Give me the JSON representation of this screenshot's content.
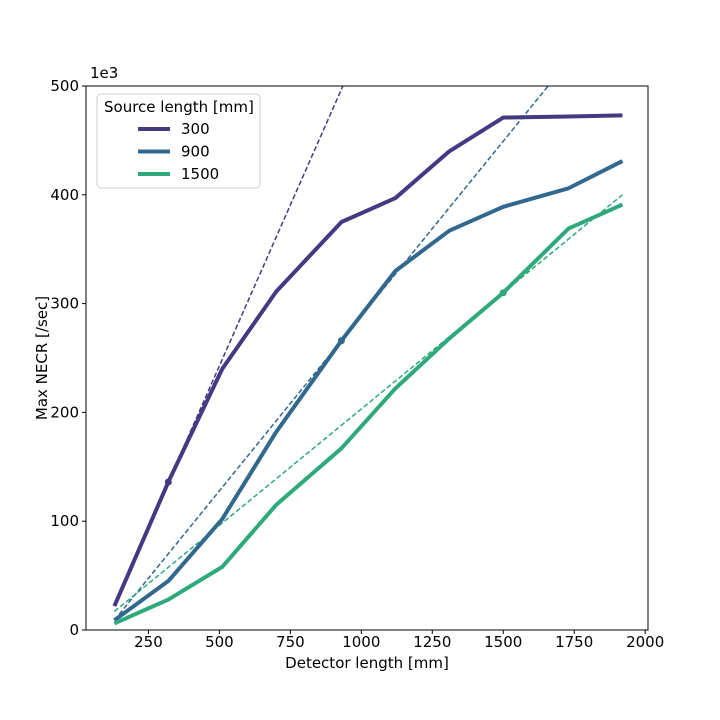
{
  "chart_data": {
    "type": "line",
    "xlabel": "Detector length [mm]",
    "ylabel": "Max NECR [/sec]",
    "y_offset_label": "1e3",
    "xlim": [
      30,
      2010
    ],
    "ylim": [
      0,
      500
    ],
    "xticks": [
      250,
      500,
      750,
      1000,
      1250,
      1500,
      1750,
      2000
    ],
    "yticks": [
      0,
      100,
      200,
      300,
      400,
      500
    ],
    "legend_title": "Source length [mm]",
    "legend_loc": "upper left",
    "x": [
      130,
      320,
      510,
      700,
      930,
      1120,
      1310,
      1500,
      1730,
      1920
    ],
    "series": [
      {
        "name": "300",
        "color": "#443983",
        "values": [
          22,
          136,
          240,
          311,
          375,
          397,
          440,
          471,
          472,
          473
        ]
      },
      {
        "name": "900",
        "color": "#31688e",
        "values": [
          9,
          45,
          102,
          182,
          266,
          330,
          367,
          389,
          406,
          431
        ]
      },
      {
        "name": "1500",
        "color": "#2ea97c",
        "values": [
          6,
          28,
          58,
          115,
          167,
          222,
          268,
          310,
          369,
          391
        ]
      }
    ],
    "fit_lines": [
      {
        "color": "#443983",
        "x": [
          130,
          935
        ],
        "values": [
          24,
          500
        ],
        "marker_x": 320,
        "marker_value": 136
      },
      {
        "color": "#31688e",
        "x": [
          130,
          1658
        ],
        "values": [
          9,
          500
        ],
        "marker_x": 930,
        "marker_value": 266
      },
      {
        "color": "#2ea97c",
        "x": [
          130,
          1920
        ],
        "values": [
          17,
          400
        ],
        "marker_x": 1500,
        "marker_value": 310
      }
    ]
  }
}
